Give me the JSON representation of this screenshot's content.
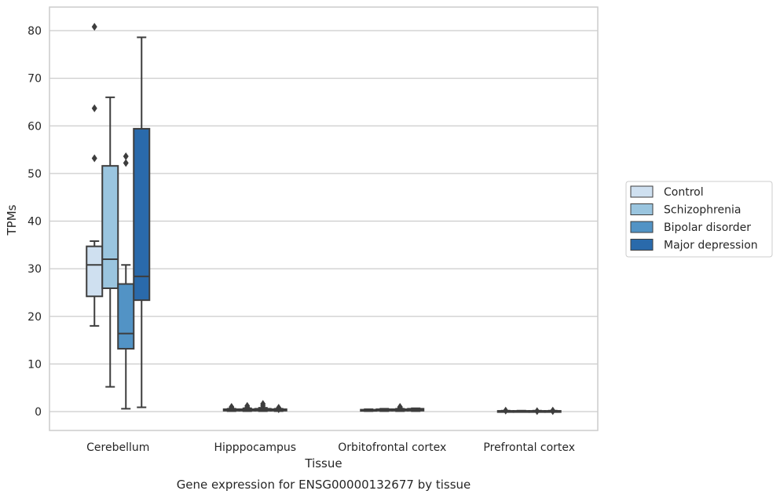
{
  "chart_data": {
    "type": "box",
    "title": "Gene expression for ENSG00000132677 by tissue",
    "xlabel": "Tissue",
    "ylabel": "TPMs",
    "ylim": [
      -4,
      85
    ],
    "yticks": [
      0,
      10,
      20,
      30,
      40,
      50,
      60,
      70,
      80
    ],
    "grid": true,
    "legend_position": "right",
    "categories": [
      "Cerebellum",
      "Hipppocampus",
      "Orbitofrontal cortex",
      "Prefrontal cortex"
    ],
    "series": [
      {
        "name": "Control",
        "color": "#cfe0f0",
        "boxes": [
          {
            "whisker_low": 18,
            "q1": 24.2,
            "median": 30.8,
            "q3": 34.7,
            "whisker_high": 35.8,
            "outliers": [
              53.2,
              63.7,
              80.8
            ]
          },
          {
            "whisker_low": 0.1,
            "q1": 0.2,
            "median": 0.3,
            "q3": 0.5,
            "whisker_high": 0.6,
            "outliers": [
              0.8,
              1.0
            ]
          },
          {
            "whisker_low": 0.1,
            "q1": 0.2,
            "median": 0.3,
            "q3": 0.4,
            "whisker_high": 0.5,
            "outliers": []
          },
          {
            "whisker_low": 0.0,
            "q1": 0.05,
            "median": 0.1,
            "q3": 0.15,
            "whisker_high": 0.2,
            "outliers": [
              0.2
            ]
          }
        ]
      },
      {
        "name": "Schizophrenia",
        "color": "#9ac5df",
        "boxes": [
          {
            "whisker_low": 5.2,
            "q1": 25.9,
            "median": 32.0,
            "q3": 51.6,
            "whisker_high": 66.0,
            "outliers": []
          },
          {
            "whisker_low": 0.1,
            "q1": 0.2,
            "median": 0.3,
            "q3": 0.5,
            "whisker_high": 0.7,
            "outliers": [
              0.9,
              1.2
            ]
          },
          {
            "whisker_low": 0.1,
            "q1": 0.2,
            "median": 0.35,
            "q3": 0.5,
            "whisker_high": 0.6,
            "outliers": []
          },
          {
            "whisker_low": 0.0,
            "q1": 0.05,
            "median": 0.1,
            "q3": 0.15,
            "whisker_high": 0.2,
            "outliers": []
          }
        ]
      },
      {
        "name": "Bipolar disorder",
        "color": "#5293c5",
        "boxes": [
          {
            "whisker_low": 0.6,
            "q1": 13.2,
            "median": 16.4,
            "q3": 26.8,
            "whisker_high": 30.8,
            "outliers": [
              52.2,
              53.6
            ]
          },
          {
            "whisker_low": 0.1,
            "q1": 0.2,
            "median": 0.4,
            "q3": 0.6,
            "whisker_high": 0.8,
            "outliers": [
              1.2,
              1.6
            ]
          },
          {
            "whisker_low": 0.1,
            "q1": 0.2,
            "median": 0.3,
            "q3": 0.5,
            "whisker_high": 0.6,
            "outliers": [
              0.8,
              1.0
            ]
          },
          {
            "whisker_low": 0.0,
            "q1": 0.05,
            "median": 0.1,
            "q3": 0.15,
            "whisker_high": 0.2,
            "outliers": [
              0.1
            ]
          }
        ]
      },
      {
        "name": "Major depression",
        "color": "#2a6aab",
        "boxes": [
          {
            "whisker_low": 0.9,
            "q1": 23.4,
            "median": 28.4,
            "q3": 59.4,
            "whisker_high": 78.6,
            "outliers": []
          },
          {
            "whisker_low": 0.1,
            "q1": 0.2,
            "median": 0.3,
            "q3": 0.5,
            "whisker_high": 0.6,
            "outliers": [
              0.5,
              0.8
            ]
          },
          {
            "whisker_low": 0.1,
            "q1": 0.2,
            "median": 0.35,
            "q3": 0.6,
            "whisker_high": 0.7,
            "outliers": []
          },
          {
            "whisker_low": 0.0,
            "q1": 0.05,
            "median": 0.1,
            "q3": 0.15,
            "whisker_high": 0.2,
            "outliers": [
              0.1,
              0.2
            ]
          }
        ]
      }
    ]
  }
}
